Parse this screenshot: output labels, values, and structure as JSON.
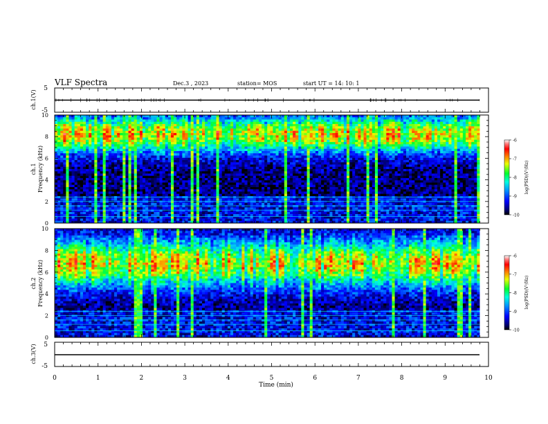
{
  "header": {
    "title": "VLF Spectra",
    "date": "Dec.3 , 2023",
    "station": "station= MOS",
    "start_ut": "start UT = 14: 10: 1"
  },
  "chart_data": [
    {
      "type": "line",
      "panel": "ch1-waveform",
      "ylabel": "ch.1(V)",
      "ylim": [
        -5,
        5
      ],
      "yticks": [
        "5",
        "-5"
      ],
      "xlim": [
        0,
        10
      ],
      "series": [
        {
          "x": [
            0,
            9.8
          ],
          "y": [
            0,
            0
          ]
        }
      ]
    },
    {
      "type": "heatmap",
      "panel": "ch1-spectrogram",
      "ylabel": "ch.1 Frequency (kHz)",
      "ylim": [
        0,
        10
      ],
      "yticks": [
        "0",
        "2",
        "4",
        "6",
        "8",
        "10"
      ],
      "xlim": [
        0,
        10
      ],
      "data_end_min": 9.8,
      "band_center_khz": 8.2,
      "band_halfwidth_khz": 1.7,
      "colorbar": {
        "label": "log(PSD)(V²/Hz)",
        "ticks": [
          "-6",
          "-7",
          "-8",
          "-9",
          "-10"
        ],
        "range": [
          -10,
          -6
        ]
      }
    },
    {
      "type": "heatmap",
      "panel": "ch2-spectrogram",
      "ylabel": "ch.2 Frequency (kHz)",
      "ylim": [
        0,
        10
      ],
      "yticks": [
        "0",
        "2",
        "4",
        "6",
        "8",
        "10"
      ],
      "xlim": [
        0,
        10
      ],
      "data_end_min": 9.8,
      "band_center_khz": 6.8,
      "band_halfwidth_khz": 2.2,
      "colorbar": {
        "label": "log(PSD)(V²/Hz)",
        "ticks": [
          "-6",
          "-7",
          "-8",
          "-9",
          "-10"
        ],
        "range": [
          -10,
          -6
        ]
      }
    },
    {
      "type": "line",
      "panel": "ch3-waveform",
      "ylabel": "ch.3(V)",
      "ylim": [
        -5,
        5
      ],
      "yticks": [
        "5",
        "-5"
      ],
      "xlim": [
        0,
        10
      ],
      "series": [
        {
          "x": [
            0,
            9.8
          ],
          "y": [
            0,
            0
          ]
        }
      ]
    }
  ],
  "xaxis": {
    "label": "Time (min)",
    "ticks": [
      "0",
      "1",
      "2",
      "3",
      "4",
      "5",
      "6",
      "7",
      "8",
      "9",
      "10"
    ]
  }
}
